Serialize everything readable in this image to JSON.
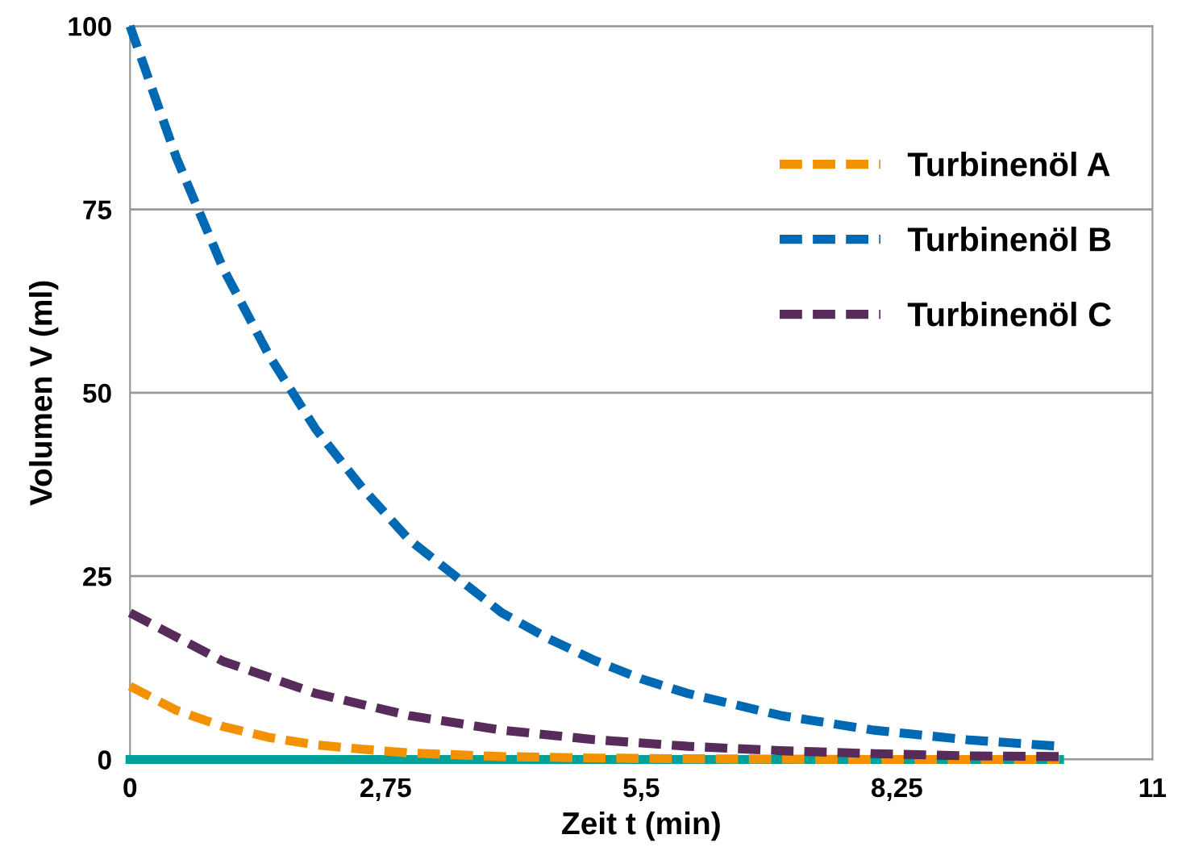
{
  "chart_data": {
    "type": "line",
    "xlabel": "Zeit t (min)",
    "ylabel": "Volumen V (ml)",
    "xlim": [
      0,
      11
    ],
    "xticks": [
      0,
      {
        "value": 2.75,
        "label": "2,75"
      },
      {
        "value": 5.5,
        "label": "5,5"
      },
      {
        "value": 8.25,
        "label": "8,25"
      },
      11
    ],
    "ylim": [
      0,
      100
    ],
    "yticks": [
      0,
      25,
      50,
      75,
      100
    ],
    "grid": "y",
    "legend": "top right",
    "series": [
      {
        "color": "#00a19a",
        "line_style": "solid",
        "x": [
          0,
          2,
          4,
          6,
          8,
          10
        ],
        "values": [
          0,
          0,
          0,
          0,
          0,
          0
        ]
      },
      {
        "name": "Turbinenöl A",
        "color": "#f39200",
        "line_style": "dashed",
        "x": [
          0,
          0.5,
          1,
          1.5,
          2,
          2.5,
          3,
          4,
          5,
          6,
          8,
          10
        ],
        "values": [
          10,
          6.7,
          4.5,
          3,
          2,
          1.4,
          0.9,
          0.4,
          0.2,
          0.1,
          0,
          0
        ]
      },
      {
        "name": "Turbinenöl B",
        "color": "#0069b4",
        "line_style": "dashed",
        "x": [
          0,
          0.5,
          1,
          1.5,
          2,
          2.5,
          3,
          3.5,
          4,
          4.5,
          5,
          5.5,
          6,
          7,
          8,
          9,
          10
        ],
        "values": [
          100,
          82,
          67,
          55,
          45,
          37,
          30,
          25,
          20,
          16.5,
          13.5,
          11,
          9,
          6,
          4,
          2.7,
          1.8
        ]
      },
      {
        "name": "Turbinenöl C",
        "color": "#582c5a",
        "line_style": "dashed",
        "x": [
          0,
          1,
          2,
          3,
          4,
          5,
          6,
          7,
          8,
          9,
          10
        ],
        "values": [
          20,
          13.4,
          9,
          6,
          4,
          2.7,
          1.8,
          1.2,
          0.8,
          0.5,
          0.4
        ]
      }
    ]
  }
}
